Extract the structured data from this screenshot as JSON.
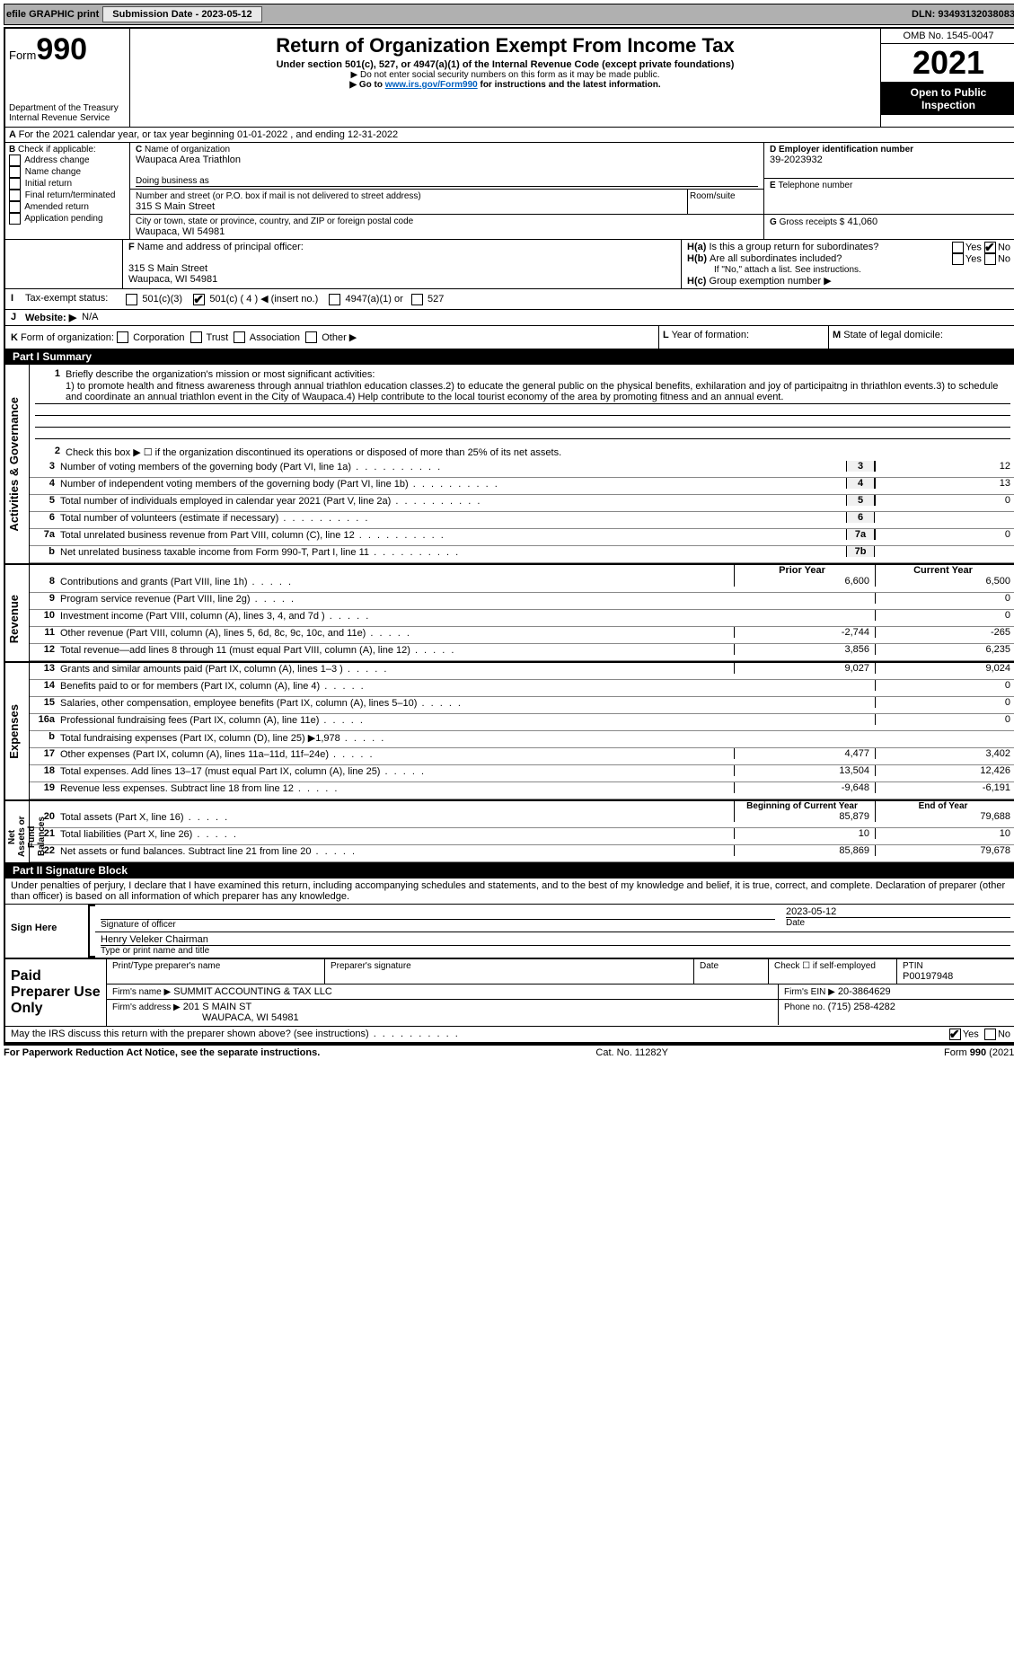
{
  "topbar": {
    "efile_label": "efile GRAPHIC print",
    "submission_label": "Submission Date - 2023-05-12",
    "dln_label": "DLN: 93493132038083"
  },
  "header": {
    "form_prefix": "Form",
    "form_number": "990",
    "dept1": "Department of the Treasury",
    "dept2": "Internal Revenue Service",
    "title": "Return of Organization Exempt From Income Tax",
    "subtitle": "Under section 501(c), 527, or 4947(a)(1) of the Internal Revenue Code (except private foundations)",
    "note1": "▶ Do not enter social security numbers on this form as it may be made public.",
    "note2_pre": "▶ Go to ",
    "note2_link": "www.irs.gov/Form990",
    "note2_post": " for instructions and the latest information.",
    "omb": "OMB No. 1545-0047",
    "year": "2021",
    "open_public": "Open to Public Inspection"
  },
  "section_a": "For the 2021 calendar year, or tax year beginning 01-01-2022    , and ending 12-31-2022",
  "section_b": {
    "label": "Check if applicable:",
    "items": [
      "Address change",
      "Name change",
      "Initial return",
      "Final return/terminated",
      "Amended return",
      "Application pending"
    ]
  },
  "section_c": {
    "name_label": "Name of organization",
    "name": "Waupaca Area Triathlon",
    "dba_label": "Doing business as",
    "addr_label": "Number and street (or P.O. box if mail is not delivered to street address)",
    "room_label": "Room/suite",
    "addr": "315 S Main Street",
    "city_label": "City or town, state or province, country, and ZIP or foreign postal code",
    "city": "Waupaca, WI  54981"
  },
  "section_d": {
    "label": "Employer identification number",
    "value": "39-2023932"
  },
  "section_e": {
    "label": "Telephone number"
  },
  "section_g": {
    "label": "Gross receipts $",
    "value": "41,060"
  },
  "section_f": {
    "label": "Name and address of principal officer:",
    "line1": "315 S Main Street",
    "line2": "Waupaca, WI  54981"
  },
  "section_h": {
    "a_label": "Is this a group return for subordinates?",
    "b_label": "Are all subordinates included?",
    "b_note": "If \"No,\" attach a list. See instructions.",
    "c_label": "Group exemption number ▶"
  },
  "section_i": {
    "label": "Tax-exempt status:",
    "opts": [
      "501(c)(3)",
      "501(c) ( 4 ) ◀ (insert no.)",
      "4947(a)(1) or",
      "527"
    ]
  },
  "section_j": {
    "label": "Website: ▶",
    "value": "N/A"
  },
  "section_k": {
    "label": "Form of organization:",
    "opts": [
      "Corporation",
      "Trust",
      "Association",
      "Other ▶"
    ]
  },
  "section_l": {
    "label": "Year of formation:"
  },
  "section_m": {
    "label": "State of legal domicile:"
  },
  "part1": {
    "bar": "Part I      Summary",
    "q1_label": "Briefly describe the organization's mission or most significant activities:",
    "q1_text": "1) to promote health and fitness awareness through annual triathlon education classes.2) to educate the general public on the physical benefits, exhilaration and joy of participaitng in thriathlon events.3) to schedule and coordinate an annual triathlon event in the City of Waupaca.4) Help contribute to the local tourist economy of the area by promoting fitness and an annual event.",
    "q2": "Check this box ▶ ☐  if the organization discontinued its operations or disposed of more than 25% of its net assets.",
    "governance_lines": [
      {
        "n": "3",
        "desc": "Number of voting members of the governing body (Part VI, line 1a)",
        "box": "3",
        "val": "12"
      },
      {
        "n": "4",
        "desc": "Number of independent voting members of the governing body (Part VI, line 1b)",
        "box": "4",
        "val": "13"
      },
      {
        "n": "5",
        "desc": "Total number of individuals employed in calendar year 2021 (Part V, line 2a)",
        "box": "5",
        "val": "0"
      },
      {
        "n": "6",
        "desc": "Total number of volunteers (estimate if necessary)",
        "box": "6",
        "val": ""
      },
      {
        "n": "7a",
        "desc": "Total unrelated business revenue from Part VIII, column (C), line 12",
        "box": "7a",
        "val": "0"
      },
      {
        "n": "b",
        "desc": "Net unrelated business taxable income from Form 990-T, Part I, line 11",
        "box": "7b",
        "val": ""
      }
    ],
    "col_headers": {
      "prior": "Prior Year",
      "current": "Current Year"
    },
    "revenue_label": "Revenue",
    "revenue_lines": [
      {
        "n": "8",
        "desc": "Contributions and grants (Part VIII, line 1h)",
        "py": "6,600",
        "cy": "6,500"
      },
      {
        "n": "9",
        "desc": "Program service revenue (Part VIII, line 2g)",
        "py": "",
        "cy": "0"
      },
      {
        "n": "10",
        "desc": "Investment income (Part VIII, column (A), lines 3, 4, and 7d )",
        "py": "",
        "cy": "0"
      },
      {
        "n": "11",
        "desc": "Other revenue (Part VIII, column (A), lines 5, 6d, 8c, 9c, 10c, and 11e)",
        "py": "-2,744",
        "cy": "-265"
      },
      {
        "n": "12",
        "desc": "Total revenue—add lines 8 through 11 (must equal Part VIII, column (A), line 12)",
        "py": "3,856",
        "cy": "6,235"
      }
    ],
    "expenses_label": "Expenses",
    "expenses_lines": [
      {
        "n": "13",
        "desc": "Grants and similar amounts paid (Part IX, column (A), lines 1–3 )",
        "py": "9,027",
        "cy": "9,024"
      },
      {
        "n": "14",
        "desc": "Benefits paid to or for members (Part IX, column (A), line 4)",
        "py": "",
        "cy": "0"
      },
      {
        "n": "15",
        "desc": "Salaries, other compensation, employee benefits (Part IX, column (A), lines 5–10)",
        "py": "",
        "cy": "0"
      },
      {
        "n": "16a",
        "desc": "Professional fundraising fees (Part IX, column (A), line 11e)",
        "py": "",
        "cy": "0"
      },
      {
        "n": "b",
        "desc": "Total fundraising expenses (Part IX, column (D), line 25) ▶1,978",
        "py": "GREY",
        "cy": "GREY"
      },
      {
        "n": "17",
        "desc": "Other expenses (Part IX, column (A), lines 11a–11d, 11f–24e)",
        "py": "4,477",
        "cy": "3,402"
      },
      {
        "n": "18",
        "desc": "Total expenses. Add lines 13–17 (must equal Part IX, column (A), line 25)",
        "py": "13,504",
        "cy": "12,426"
      },
      {
        "n": "19",
        "desc": "Revenue less expenses. Subtract line 18 from line 12",
        "py": "-9,648",
        "cy": "-6,191"
      }
    ],
    "netassets_label": "Net Assets or Fund Balances",
    "na_headers": {
      "begin": "Beginning of Current Year",
      "end": "End of Year"
    },
    "netassets_lines": [
      {
        "n": "20",
        "desc": "Total assets (Part X, line 16)",
        "py": "85,879",
        "cy": "79,688"
      },
      {
        "n": "21",
        "desc": "Total liabilities (Part X, line 26)",
        "py": "10",
        "cy": "10"
      },
      {
        "n": "22",
        "desc": "Net assets or fund balances. Subtract line 21 from line 20",
        "py": "85,869",
        "cy": "79,678"
      }
    ],
    "gov_label": "Activities & Governance"
  },
  "part2": {
    "bar": "Part II     Signature Block",
    "penalty": "Under penalties of perjury, I declare that I have examined this return, including accompanying schedules and statements, and to the best of my knowledge and belief, it is true, correct, and complete. Declaration of preparer (other than officer) is based on all information of which preparer has any knowledge.",
    "sign_here": "Sign Here",
    "sig_officer": "Signature of officer",
    "sig_date": "2023-05-12",
    "date_label": "Date",
    "name_title": "Henry Veleker  Chairman",
    "type_name": "Type or print name and title",
    "paid": "Paid Preparer Use Only",
    "prep_name_label": "Print/Type preparer's name",
    "prep_sig_label": "Preparer's signature",
    "check_if": "Check ☐ if self-employed",
    "ptin_label": "PTIN",
    "ptin": "P00197948",
    "firm_name_label": "Firm's name    ▶",
    "firm_name": "SUMMIT ACCOUNTING & TAX LLC",
    "firm_ein_label": "Firm's EIN ▶",
    "firm_ein": "20-3864629",
    "firm_addr_label": "Firm's address ▶",
    "firm_addr1": "201 S MAIN ST",
    "firm_addr2": "WAUPACA, WI  54981",
    "phone_label": "Phone no.",
    "phone": "(715) 258-4282",
    "discuss": "May the IRS discuss this return with the preparer shown above? (see instructions)"
  },
  "footer": {
    "left": "For Paperwork Reduction Act Notice, see the separate instructions.",
    "mid": "Cat. No. 11282Y",
    "right": "Form 990 (2021)"
  },
  "yesno": {
    "yes": "Yes",
    "no": "No"
  }
}
